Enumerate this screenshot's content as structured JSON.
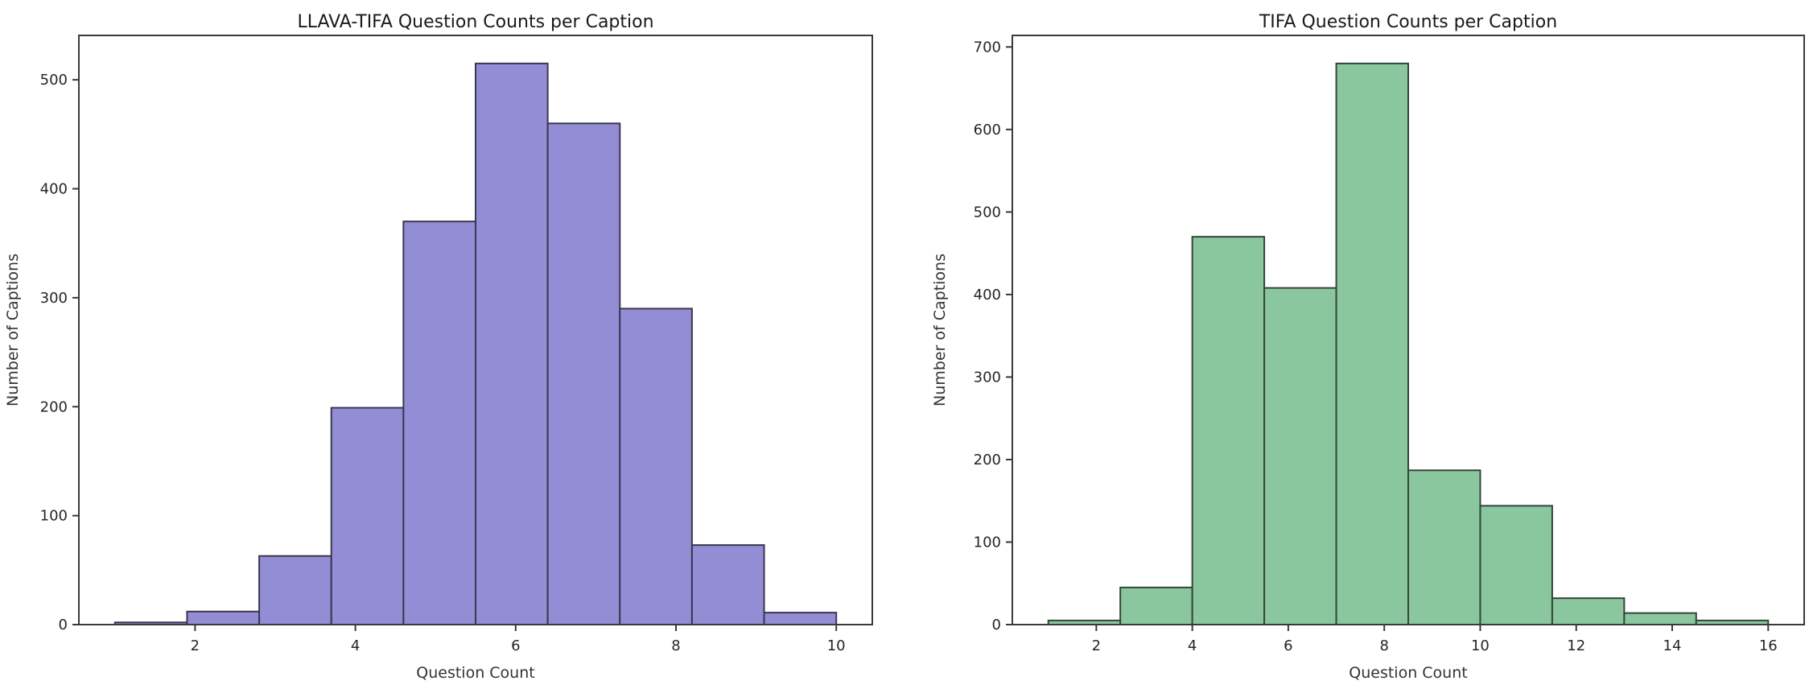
{
  "figure": {
    "background": "#ffffff",
    "spine_color": "#3a3a3a",
    "tick_color": "#3a3a3a",
    "text_color": "#262626"
  },
  "chart_data": [
    {
      "type": "bar",
      "subtype": "histogram",
      "title": "LLAVA-TIFA Question Counts per Caption",
      "xlabel": "Question Count",
      "ylabel": "Number of Captions",
      "bin_edges": [
        1.0,
        1.9,
        2.8,
        3.7,
        4.6,
        5.5,
        6.4,
        7.3,
        8.2,
        9.1,
        10.0
      ],
      "values": [
        2,
        12,
        63,
        199,
        370,
        515,
        460,
        290,
        73,
        11
      ],
      "bar_color": "#928dd4",
      "bar_edge_color": "#3b3750",
      "xticks": [
        2,
        4,
        6,
        8,
        10
      ],
      "yticks": [
        0,
        100,
        200,
        300,
        400,
        500
      ],
      "xlim": [
        0.55,
        10.45
      ],
      "ylim": [
        0,
        540.75
      ],
      "grid": false,
      "legend": null
    },
    {
      "type": "bar",
      "subtype": "histogram",
      "title": "TIFA Question Counts per Caption",
      "xlabel": "Question Count",
      "ylabel": "Number of Captions",
      "bin_edges": [
        1.0,
        2.5,
        4.0,
        5.5,
        7.0,
        8.5,
        10.0,
        11.5,
        13.0,
        14.5,
        16.0
      ],
      "values": [
        5,
        45,
        470,
        408,
        680,
        187,
        144,
        32,
        14,
        5
      ],
      "bar_color": "#8ac79e",
      "bar_edge_color": "#33463a",
      "xticks": [
        2,
        4,
        6,
        8,
        10,
        12,
        14,
        16
      ],
      "yticks": [
        0,
        100,
        200,
        300,
        400,
        500,
        600,
        700
      ],
      "xlim": [
        0.25,
        16.75
      ],
      "ylim": [
        0,
        714
      ],
      "grid": false,
      "legend": null
    }
  ]
}
